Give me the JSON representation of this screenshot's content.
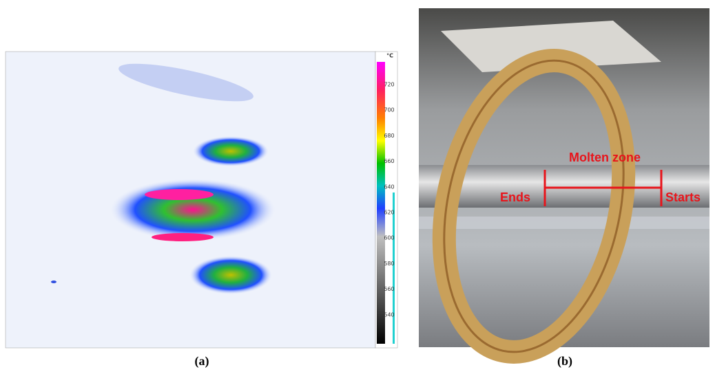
{
  "figure": {
    "panels": [
      {
        "caption": "(a)",
        "colorbar": {
          "unit": "°C",
          "ticks": [
            720,
            700,
            680,
            660,
            640,
            620,
            600,
            580,
            560,
            540
          ]
        }
      },
      {
        "caption": "(b)",
        "annotations": {
          "zone": "Molten zone",
          "left": "Ends",
          "right": "Starts"
        }
      }
    ]
  }
}
